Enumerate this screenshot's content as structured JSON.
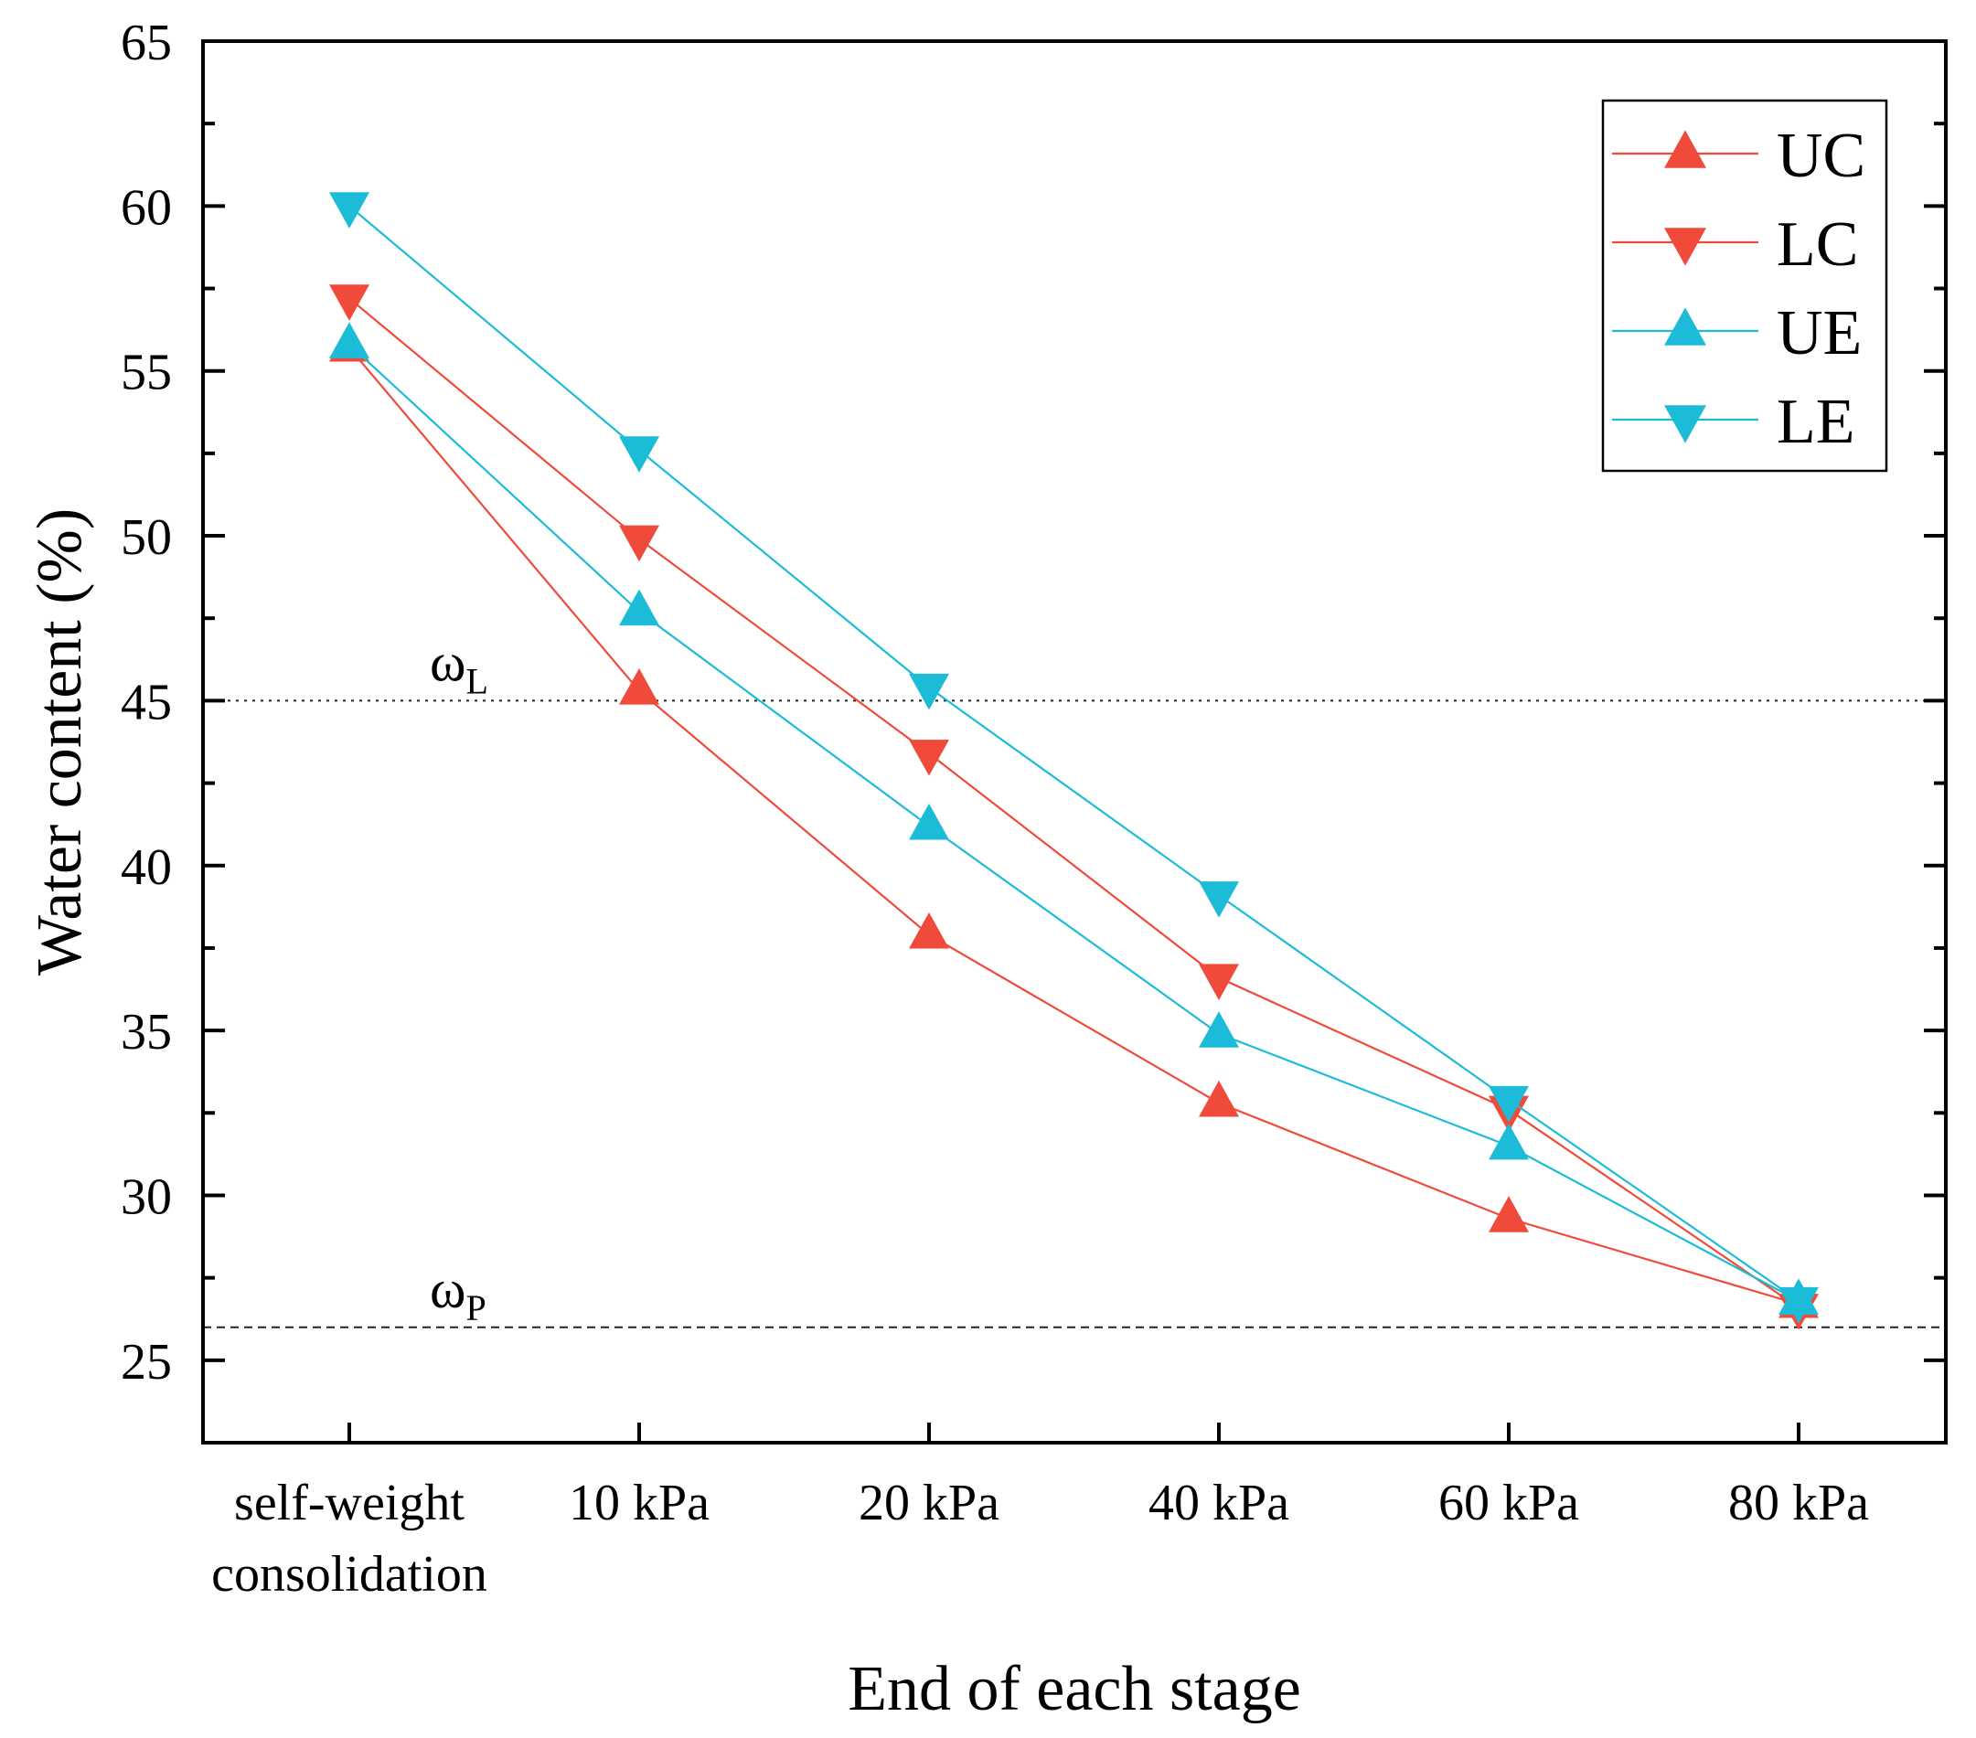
{
  "chart_data": {
    "type": "line",
    "categories": [
      [
        "self-weight",
        "consolidation"
      ],
      [
        "10 kPa"
      ],
      [
        "20 kPa"
      ],
      [
        "40 kPa"
      ],
      [
        "60 kPa"
      ],
      [
        "80 kPa"
      ]
    ],
    "xlabel": "End of each stage",
    "ylabel": "Water content (%)",
    "ylim": [
      22.5,
      65
    ],
    "yticks": [
      25,
      30,
      35,
      40,
      45,
      50,
      55,
      60,
      65
    ],
    "legend_position": "top-right",
    "series": [
      {
        "name": "UC",
        "color": "#f04a3a",
        "marker": "triangle-up",
        "values": [
          55.7,
          45.3,
          37.9,
          32.8,
          29.3,
          26.7
        ]
      },
      {
        "name": "LC",
        "color": "#f04a3a",
        "marker": "triangle-down",
        "values": [
          57.2,
          49.9,
          43.4,
          36.6,
          32.6,
          26.6
        ]
      },
      {
        "name": "UE",
        "color": "#1cbcd8",
        "marker": "triangle-up",
        "values": [
          55.8,
          47.7,
          41.2,
          34.9,
          31.5,
          26.8
        ]
      },
      {
        "name": "LE",
        "color": "#1cbcd8",
        "marker": "triangle-down",
        "values": [
          60.0,
          52.6,
          45.4,
          39.1,
          32.9,
          26.8
        ]
      }
    ],
    "reference_lines": [
      {
        "name": "liquid-limit",
        "value": 45,
        "symbol": "ω",
        "subscript": "L",
        "style": "dotted"
      },
      {
        "name": "plastic-limit",
        "value": 26,
        "symbol": "ω",
        "subscript": "P",
        "style": "dashed"
      }
    ]
  }
}
